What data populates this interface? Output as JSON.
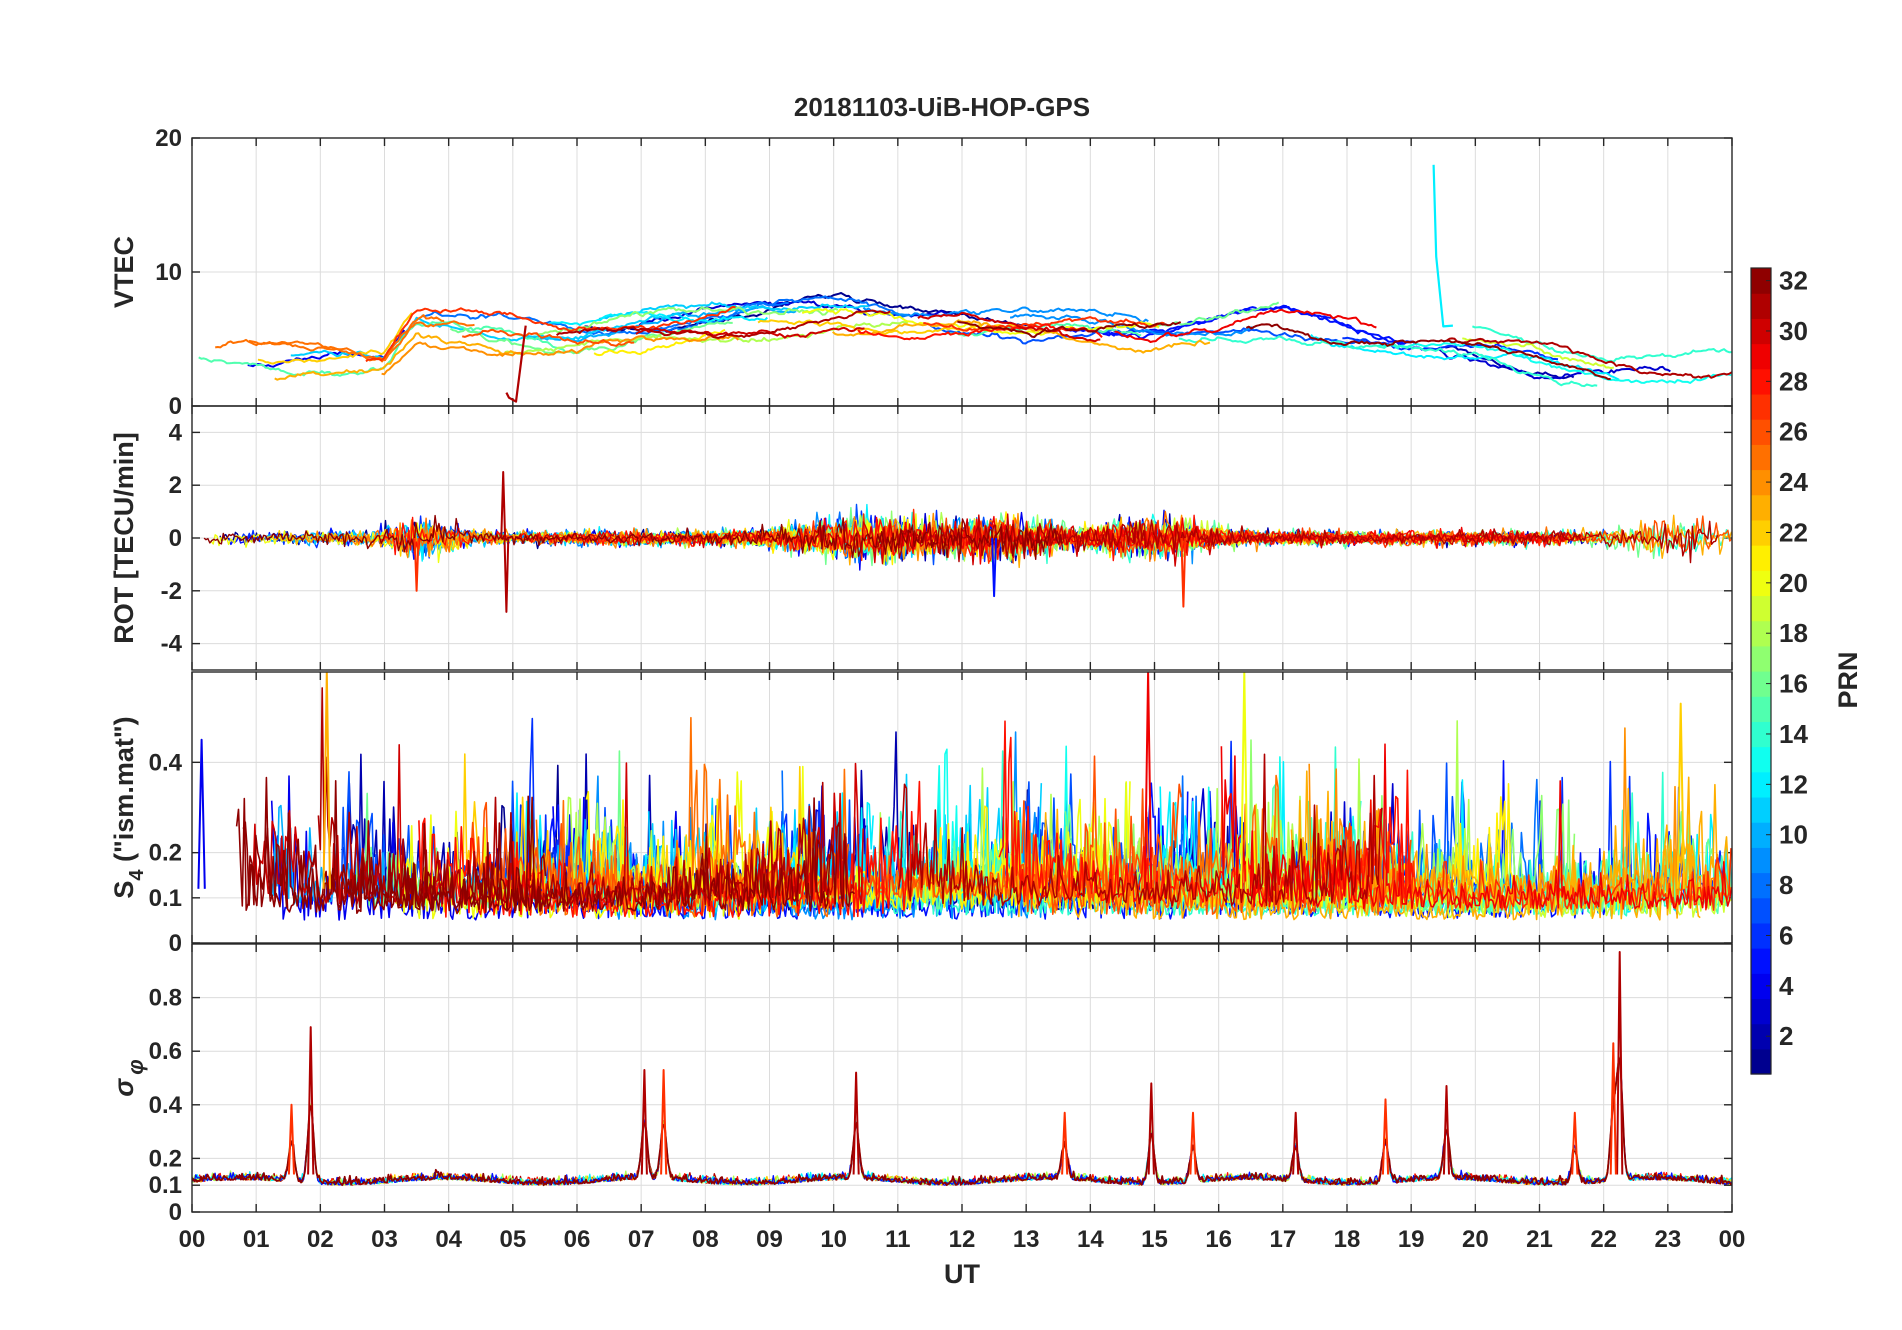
{
  "figure_title": "20181103-UiB-HOP-GPS",
  "x_axis": {
    "label": "UT",
    "ticks": [
      "00",
      "01",
      "02",
      "03",
      "04",
      "05",
      "06",
      "07",
      "08",
      "09",
      "10",
      "11",
      "12",
      "13",
      "14",
      "15",
      "16",
      "17",
      "18",
      "19",
      "20",
      "21",
      "22",
      "23",
      "00"
    ],
    "range_hours": [
      0,
      24
    ]
  },
  "colorbar": {
    "label": "PRN",
    "min": 1,
    "max": 32,
    "ticks": [
      2,
      4,
      6,
      8,
      10,
      12,
      14,
      16,
      18,
      20,
      22,
      24,
      26,
      28,
      30,
      32
    ],
    "colormap": "jet",
    "levels": 32
  },
  "chart_data": [
    {
      "type": "line",
      "panel": "vtec",
      "ylabel": "VTEC",
      "ylim": [
        0,
        20
      ],
      "yticks": [
        0,
        10,
        20
      ],
      "series_count": 32,
      "notable_points": [
        {
          "x_hour": 19.35,
          "y": 18,
          "prn": 12,
          "note": "spike"
        },
        {
          "x_hour": 4.9,
          "y": 1,
          "prn": 31,
          "note": "track start"
        }
      ],
      "baseline_profile": [
        [
          0,
          3.5
        ],
        [
          3,
          3
        ],
        [
          3.5,
          6
        ],
        [
          6,
          5
        ],
        [
          10,
          7
        ],
        [
          12,
          6.5
        ],
        [
          15,
          5.5
        ],
        [
          17,
          6.5
        ],
        [
          19,
          5
        ],
        [
          22,
          3
        ],
        [
          24,
          2.5
        ]
      ]
    },
    {
      "type": "line",
      "panel": "rot",
      "ylabel": "ROT [TECU/min]",
      "ylim": [
        -5,
        5
      ],
      "yticks": [
        -4,
        -2,
        0,
        2,
        4
      ],
      "series_count": 32,
      "notable_points": [
        {
          "x_hour": 4.85,
          "y": 2.5,
          "prn": 31
        },
        {
          "x_hour": 4.9,
          "y": -2.8,
          "prn": 31
        },
        {
          "x_hour": 15.45,
          "y": -2.6,
          "prn": 27
        },
        {
          "x_hour": 3.5,
          "y": -2.0,
          "prn": 27
        },
        {
          "x_hour": 12.5,
          "y": -2.2,
          "prn": 5
        }
      ]
    },
    {
      "type": "line",
      "panel": "s4",
      "ylabel": "S4 (\"ism.mat\")",
      "ylabel_parts": {
        "base": "S",
        "sub": "4",
        "rest": " (\"ism.mat\")"
      },
      "ylim": [
        0,
        0.6
      ],
      "yticks": [
        0,
        0.1,
        0.2,
        0.4
      ],
      "series_count": 32,
      "notable_points": [
        {
          "x_hour": 2.1,
          "y": 0.6,
          "prn": 23
        },
        {
          "x_hour": 14.9,
          "y": 0.6,
          "prn": 29
        },
        {
          "x_hour": 16.4,
          "y": 0.6,
          "prn": 20
        },
        {
          "x_hour": 23.2,
          "y": 0.53,
          "prn": 22
        },
        {
          "x_hour": 0.15,
          "y": 0.45,
          "prn": 4
        }
      ]
    },
    {
      "type": "line",
      "panel": "sigma_phi",
      "ylabel": "σ φ",
      "ylabel_parts": {
        "base": "σ",
        "sub": "φ"
      },
      "ylim": [
        0,
        1
      ],
      "yticks": [
        0,
        0.1,
        0.2,
        0.4,
        0.6,
        0.8
      ],
      "series_count": 32,
      "peaks": [
        {
          "x_hour": 1.85,
          "y": 0.69
        },
        {
          "x_hour": 1.55,
          "y": 0.4
        },
        {
          "x_hour": 7.05,
          "y": 0.53
        },
        {
          "x_hour": 7.35,
          "y": 0.53
        },
        {
          "x_hour": 10.35,
          "y": 0.52
        },
        {
          "x_hour": 13.6,
          "y": 0.37
        },
        {
          "x_hour": 14.95,
          "y": 0.48
        },
        {
          "x_hour": 15.6,
          "y": 0.37
        },
        {
          "x_hour": 17.2,
          "y": 0.37
        },
        {
          "x_hour": 18.6,
          "y": 0.42
        },
        {
          "x_hour": 19.55,
          "y": 0.47
        },
        {
          "x_hour": 21.55,
          "y": 0.37
        },
        {
          "x_hour": 22.25,
          "y": 0.97
        },
        {
          "x_hour": 22.15,
          "y": 0.63
        }
      ]
    }
  ]
}
